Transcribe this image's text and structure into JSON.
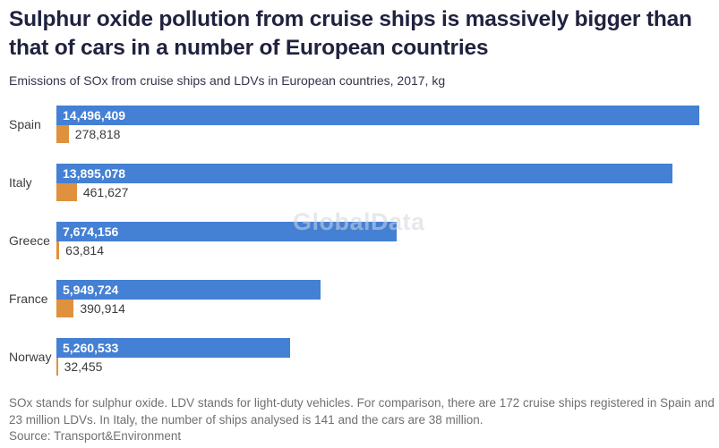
{
  "header": {
    "title": "Sulphur oxide pollution from cruise ships is massively bigger than that of cars in a number of European countries",
    "subtitle": "Emissions of SOx from cruise ships and LDVs in European countries, 2017, kg"
  },
  "watermark": "GlobalData",
  "chart_data": {
    "type": "bar",
    "orientation": "horizontal",
    "title": "Sulphur oxide pollution from cruise ships is massively bigger than that of cars in a number of European countries",
    "subtitle": "Emissions of SOx from cruise ships and LDVs in European countries, 2017, kg",
    "categories": [
      "Spain",
      "Italy",
      "Greece",
      "France",
      "Norway"
    ],
    "series": [
      {
        "name": "Cruise ships",
        "color": "#4480d4",
        "values": [
          14496409,
          13895078,
          7674156,
          5949724,
          5260533
        ],
        "labels": [
          "14,496,409",
          "13,895,078",
          "7,674,156",
          "5,949,724",
          "5,260,533"
        ]
      },
      {
        "name": "LDVs",
        "color": "#e0913e",
        "values": [
          278818,
          461627,
          63814,
          390914,
          32455
        ],
        "labels": [
          "278,818",
          "461,627",
          "63,814",
          "390,914",
          "32,455"
        ]
      }
    ],
    "xlabel": "",
    "ylabel": "",
    "xlim": [
      0,
      14496409
    ],
    "grid": false,
    "legend_position": "none",
    "value_label_style": {
      "series_0": "white bold label inside bar",
      "series_1": "dark label right of bar"
    }
  },
  "footer": {
    "note": "SOx stands for sulphur oxide. LDV stands for light-duty vehicles. For comparison, there are 172 cruise ships registered in Spain and 23 million LDVs. In Italy, the number of ships analysed is 141 and the cars are 38 million.",
    "source": "Source: Transport&Environment"
  }
}
